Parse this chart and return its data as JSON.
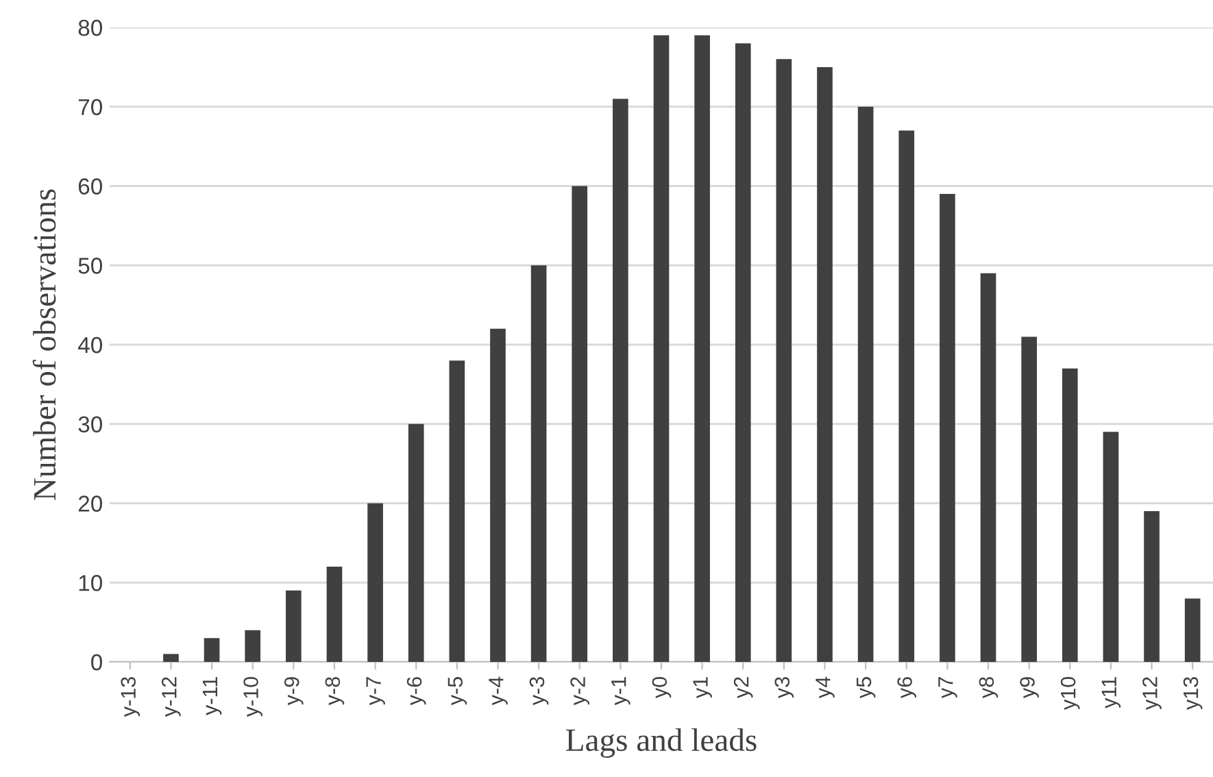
{
  "chart_data": {
    "type": "bar",
    "xlabel": "Lags and leads",
    "ylabel": "Number of observations",
    "categories": [
      "y-13",
      "y-12",
      "y-11",
      "y-10",
      "y-9",
      "y-8",
      "y-7",
      "y-6",
      "y-5",
      "y-4",
      "y-3",
      "y-2",
      "y-1",
      "y0",
      "y1",
      "y2",
      "y3",
      "y4",
      "y5",
      "y6",
      "y7",
      "y8",
      "y9",
      "y10",
      "y11",
      "y12",
      "y13"
    ],
    "values": [
      0,
      1,
      3,
      4,
      9,
      12,
      20,
      30,
      38,
      42,
      50,
      60,
      71,
      79,
      79,
      78,
      76,
      75,
      70,
      67,
      59,
      49,
      41,
      37,
      29,
      19,
      8
    ],
    "color": "#404040",
    "ylim": [
      0,
      80
    ],
    "yticks": [
      0,
      10,
      20,
      30,
      40,
      50,
      60,
      70,
      80
    ],
    "grid": "y",
    "legend": false
  }
}
